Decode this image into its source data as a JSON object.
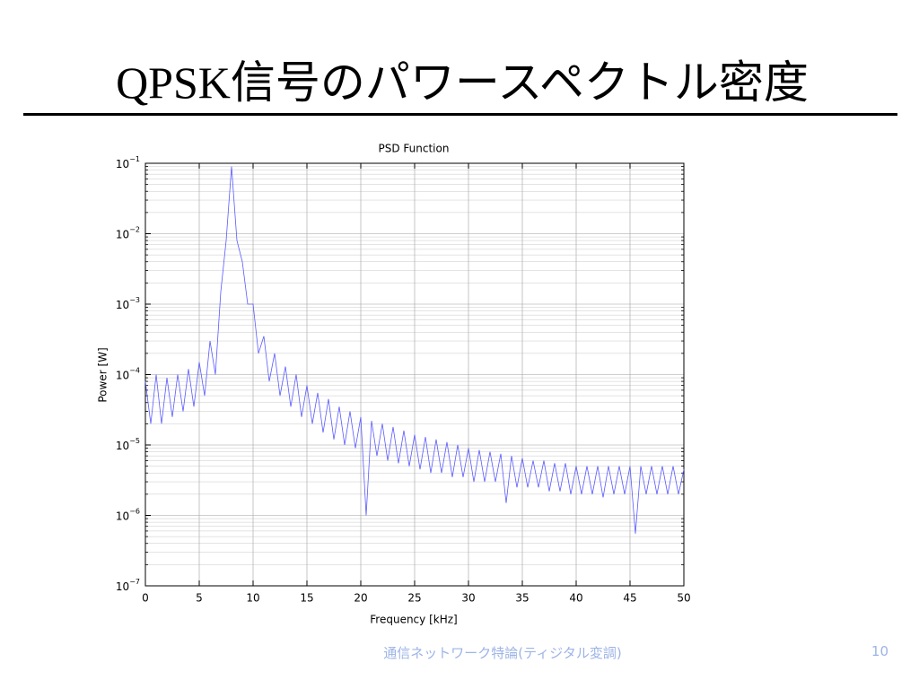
{
  "slide": {
    "title": "QPSK信号のパワースペクトル密度",
    "footer": "通信ネットワーク特論(ティジタル変調)",
    "page": "10"
  },
  "chart_data": {
    "type": "line",
    "title": "PSD Function",
    "x_label": "Frequency [kHz]",
    "y_label": "Power [W]",
    "log_y": true,
    "grid": true,
    "minor_grid": true,
    "xlim": [
      0,
      50
    ],
    "xticks": [
      0,
      5,
      10,
      15,
      20,
      25,
      30,
      35,
      40,
      45,
      50
    ],
    "ylim": [
      1e-07,
      0.1
    ],
    "yticks": [
      {
        "value": 1e-07,
        "label": "10",
        "exp": "−7"
      },
      {
        "value": 1e-06,
        "label": "10",
        "exp": "−6"
      },
      {
        "value": 1e-05,
        "label": "10",
        "exp": "−5"
      },
      {
        "value": 0.0001,
        "label": "10",
        "exp": "−4"
      },
      {
        "value": 0.001,
        "label": "10",
        "exp": "−3"
      },
      {
        "value": 0.01,
        "label": "10",
        "exp": "−2"
      },
      {
        "value": 0.1,
        "label": "10",
        "exp": "−1"
      }
    ],
    "x": [
      0,
      0.5,
      1,
      1.5,
      2,
      2.5,
      3,
      3.5,
      4,
      4.5,
      5,
      5.5,
      6,
      6.5,
      7,
      7.5,
      8,
      8.5,
      9,
      9.5,
      10,
      10.5,
      11,
      11.5,
      12,
      12.5,
      13,
      13.5,
      14,
      14.5,
      15,
      15.5,
      16,
      16.5,
      17,
      17.5,
      18,
      18.5,
      19,
      19.5,
      20,
      20.5,
      21,
      21.5,
      22,
      22.5,
      23,
      23.5,
      24,
      24.5,
      25,
      25.5,
      26,
      26.5,
      27,
      27.5,
      28,
      28.5,
      29,
      29.5,
      30,
      30.5,
      31,
      31.5,
      32,
      32.5,
      33,
      33.5,
      34,
      34.5,
      35,
      35.5,
      36,
      36.5,
      37,
      37.5,
      38,
      38.5,
      39,
      39.5,
      40,
      40.5,
      41,
      41.5,
      42,
      42.5,
      43,
      43.5,
      44,
      44.5,
      45,
      45.5,
      46,
      46.5,
      47,
      47.5,
      48,
      48.5,
      49,
      49.5,
      50
    ],
    "series": [
      {
        "color": "#5a5aff",
        "values": [
          8e-05,
          2e-05,
          0.0001,
          2e-05,
          9e-05,
          2.5e-05,
          0.0001,
          3e-05,
          0.00012,
          3.5e-05,
          0.00015,
          5e-05,
          0.0003,
          0.0001,
          0.0015,
          0.008,
          0.09,
          0.008,
          0.004,
          0.001,
          0.001,
          0.0002,
          0.00035,
          8e-05,
          0.0002,
          5e-05,
          0.00013,
          3.5e-05,
          0.0001,
          2.5e-05,
          7e-05,
          2e-05,
          5.5e-05,
          1.5e-05,
          4.5e-05,
          1.2e-05,
          3.5e-05,
          1e-05,
          3e-05,
          9e-06,
          2.5e-05,
          1e-06,
          2.2e-05,
          7e-06,
          2e-05,
          6e-06,
          1.8e-05,
          5.5e-06,
          1.6e-05,
          5e-06,
          1.4e-05,
          4.5e-06,
          1.3e-05,
          4e-06,
          1.2e-05,
          4e-06,
          1.1e-05,
          3.5e-06,
          1e-05,
          3.5e-06,
          9e-06,
          3e-06,
          8.5e-06,
          3e-06,
          8e-06,
          3e-06,
          7.5e-06,
          1.5e-06,
          7e-06,
          2.5e-06,
          6.5e-06,
          2.5e-06,
          6e-06,
          2.5e-06,
          6e-06,
          2.2e-06,
          5.5e-06,
          2.2e-06,
          5.5e-06,
          2e-06,
          5e-06,
          2e-06,
          5e-06,
          2e-06,
          5e-06,
          1.8e-06,
          5e-06,
          2e-06,
          5e-06,
          2e-06,
          5e-06,
          5.5e-07,
          5e-06,
          2e-06,
          5e-06,
          2e-06,
          5e-06,
          2e-06,
          5e-06,
          2e-06,
          4.5e-06
        ]
      }
    ]
  }
}
